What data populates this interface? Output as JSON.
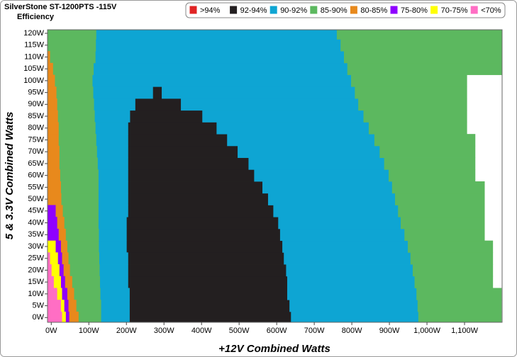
{
  "chart_data": {
    "type": "band-map",
    "title": "SilverStone ST-1200PTS -115V",
    "subtitle": "Efficiency",
    "x_label": "+12V Combined Watts",
    "y_label": "5 & 3.3V Combined Watts",
    "xlim": [
      -10,
      1200
    ],
    "ylim": [
      -2,
      121.5
    ],
    "xticks": [
      {
        "value": 0,
        "label": "0W"
      },
      {
        "value": 100,
        "label": "100W"
      },
      {
        "value": 200,
        "label": "200W"
      },
      {
        "value": 300,
        "label": "300W"
      },
      {
        "value": 400,
        "label": "400W"
      },
      {
        "value": 500,
        "label": "500W"
      },
      {
        "value": 600,
        "label": "600W"
      },
      {
        "value": 700,
        "label": "700W"
      },
      {
        "value": 800,
        "label": "800W"
      },
      {
        "value": 900,
        "label": "900W"
      },
      {
        "value": 1000,
        "label": "1,000W"
      },
      {
        "value": 1100,
        "label": "1,100W"
      }
    ],
    "yticks": [
      {
        "value": 0,
        "label": "0W"
      },
      {
        "value": 5,
        "label": "5W"
      },
      {
        "value": 10,
        "label": "10W"
      },
      {
        "value": 15,
        "label": "15W"
      },
      {
        "value": 20,
        "label": "20W"
      },
      {
        "value": 25,
        "label": "25W"
      },
      {
        "value": 30,
        "label": "30W"
      },
      {
        "value": 35,
        "label": "35W"
      },
      {
        "value": 40,
        "label": "40W"
      },
      {
        "value": 45,
        "label": "45W"
      },
      {
        "value": 50,
        "label": "50W"
      },
      {
        "value": 55,
        "label": "55W"
      },
      {
        "value": 60,
        "label": "60W"
      },
      {
        "value": 65,
        "label": "65W"
      },
      {
        "value": 70,
        "label": "70W"
      },
      {
        "value": 75,
        "label": "75W"
      },
      {
        "value": 80,
        "label": "80W"
      },
      {
        "value": 85,
        "label": "85W"
      },
      {
        "value": 90,
        "label": "90W"
      },
      {
        "value": 95,
        "label": "95W"
      },
      {
        "value": 100,
        "label": "100W"
      },
      {
        "value": 105,
        "label": "105W"
      },
      {
        "value": 110,
        "label": "110W"
      },
      {
        "value": 115,
        "label": "115W"
      },
      {
        "value": 120,
        "label": "120W"
      }
    ],
    "y": [
      0,
      5,
      10,
      15,
      20,
      25,
      30,
      35,
      40,
      45,
      50,
      55,
      60,
      65,
      70,
      75,
      80,
      85,
      90,
      95,
      100,
      105,
      110,
      115,
      120
    ],
    "series": [
      {
        "name": ">94%",
        "color": "#e02424"
      },
      {
        "name": "92-94%",
        "color": "#231f20",
        "x_ranges": [
          [
            [
              208,
              638
            ]
          ],
          [
            [
              208,
              634
            ]
          ],
          [
            [
              208,
              628
            ]
          ],
          [
            [
              204,
              628
            ]
          ],
          [
            [
              204,
              625
            ]
          ],
          [
            [
              204,
              619
            ]
          ],
          [
            [
              200,
              615
            ]
          ],
          [
            [
              200,
              609
            ]
          ],
          [
            [
              200,
              604
            ]
          ],
          [
            [
              204,
              591
            ]
          ],
          [
            [
              204,
              577
            ]
          ],
          [
            [
              204,
              562
            ]
          ],
          [
            [
              204,
              540
            ]
          ],
          [
            [
              204,
              525
            ]
          ],
          [
            [
              204,
              496
            ]
          ],
          [
            [
              204,
              468
            ]
          ],
          [
            [
              204,
              440
            ]
          ],
          [
            [
              209,
              402
            ]
          ],
          [
            [
              223,
              345
            ]
          ],
          [
            [
              270,
              294
            ]
          ],
          [],
          [],
          [],
          [],
          []
        ]
      },
      {
        "name": "90-92%",
        "color": "#0ea5d3",
        "x_ranges": [
          [
            [
              132,
              208
            ],
            [
              638,
              977
            ]
          ],
          [
            [
              132,
              208
            ],
            [
              634,
              975
            ]
          ],
          [
            [
              130,
              208
            ],
            [
              628,
              972
            ]
          ],
          [
            [
              129,
              204
            ],
            [
              628,
              967
            ]
          ],
          [
            [
              128,
              204
            ],
            [
              625,
              962
            ]
          ],
          [
            [
              127,
              204
            ],
            [
              619,
              956
            ]
          ],
          [
            [
              126,
              200
            ],
            [
              615,
              949
            ]
          ],
          [
            [
              126,
              200
            ],
            [
              609,
              940
            ]
          ],
          [
            [
              125,
              200
            ],
            [
              604,
              930
            ]
          ],
          [
            [
              125,
              204
            ],
            [
              591,
              923
            ]
          ],
          [
            [
              125,
              204
            ],
            [
              577,
              915
            ]
          ],
          [
            [
              125,
              204
            ],
            [
              562,
              907
            ]
          ],
          [
            [
              125,
              204
            ],
            [
              540,
              898
            ]
          ],
          [
            [
              123,
              204
            ],
            [
              525,
              886
            ]
          ],
          [
            [
              121,
              204
            ],
            [
              496,
              874
            ]
          ],
          [
            [
              119,
              204
            ],
            [
              468,
              860
            ]
          ],
          [
            [
              117,
              204
            ],
            [
              440,
              845
            ]
          ],
          [
            [
              115,
              209
            ],
            [
              402,
              831
            ]
          ],
          [
            [
              113,
              223
            ],
            [
              345,
              817
            ]
          ],
          [
            [
              111,
              270
            ],
            [
              294,
              808
            ]
          ],
          [
            [
              109,
              798
            ]
          ],
          [
            [
              112,
              788
            ]
          ],
          [
            [
              117,
              779
            ]
          ],
          [
            [
              118,
              770
            ]
          ],
          [
            [
              119,
              760
            ]
          ]
        ]
      },
      {
        "name": "85-90%",
        "color": "#5cb85f",
        "x_ranges": [
          [
            [
              72,
              132
            ],
            [
              977,
              1198
            ]
          ],
          [
            [
              66,
              132
            ],
            [
              975,
              1198
            ]
          ],
          [
            [
              60,
              130
            ],
            [
              972,
              1198
            ]
          ],
          [
            [
              55,
              129
            ],
            [
              967,
              1175
            ]
          ],
          [
            [
              49,
              128
            ],
            [
              962,
              1175
            ]
          ],
          [
            [
              45,
              127
            ],
            [
              956,
              1175
            ]
          ],
          [
            [
              42,
              126
            ],
            [
              949,
              1175
            ]
          ],
          [
            [
              38,
              126
            ],
            [
              940,
              1153
            ]
          ],
          [
            [
              34,
              125
            ],
            [
              930,
              1153
            ]
          ],
          [
            [
              30,
              125
            ],
            [
              923,
              1153
            ]
          ],
          [
            [
              26,
              125
            ],
            [
              915,
              1153
            ]
          ],
          [
            [
              25,
              125
            ],
            [
              907,
              1153
            ]
          ],
          [
            [
              23,
              125
            ],
            [
              898,
              1128
            ]
          ],
          [
            [
              21,
              123
            ],
            [
              886,
              1128
            ]
          ],
          [
            [
              21,
              121
            ],
            [
              874,
              1128
            ]
          ],
          [
            [
              19,
              119
            ],
            [
              860,
              1128
            ]
          ],
          [
            [
              19,
              117
            ],
            [
              845,
              1106
            ]
          ],
          [
            [
              17,
              115
            ],
            [
              831,
              1106
            ]
          ],
          [
            [
              15,
              113
            ],
            [
              817,
              1106
            ]
          ],
          [
            [
              13,
              111
            ],
            [
              808,
              1106
            ]
          ],
          [
            [
              9,
              109
            ],
            [
              798,
              1106
            ]
          ],
          [
            [
              4,
              112
            ],
            [
              788,
              1200
            ]
          ],
          [
            [
              -4,
              117
            ],
            [
              779,
              1200
            ]
          ],
          [
            [
              -10,
              118
            ],
            [
              770,
              1200
            ]
          ],
          [
            [
              -10,
              119
            ],
            [
              760,
              1200
            ]
          ]
        ]
      },
      {
        "name": "80-85%",
        "color": "#e8891c",
        "x_ranges": [
          [
            [
              47,
              72
            ]
          ],
          [
            [
              45,
              66
            ]
          ],
          [
            [
              42,
              60
            ]
          ],
          [
            [
              36,
              55
            ]
          ],
          [
            [
              32,
              49
            ]
          ],
          [
            [
              28,
              45
            ]
          ],
          [
            [
              25,
              42
            ]
          ],
          [
            [
              19,
              38
            ]
          ],
          [
            [
              15,
              34
            ]
          ],
          [
            [
              11,
              30
            ]
          ],
          [
            [
              -10,
              26
            ]
          ],
          [
            [
              -10,
              25
            ]
          ],
          [
            [
              -10,
              23
            ]
          ],
          [
            [
              -10,
              21
            ]
          ],
          [
            [
              -10,
              21
            ]
          ],
          [
            [
              -10,
              19
            ]
          ],
          [
            [
              -10,
              19
            ]
          ],
          [
            [
              -10,
              17
            ]
          ],
          [
            [
              -10,
              15
            ]
          ],
          [
            [
              -10,
              13
            ]
          ],
          [
            [
              -10,
              9
            ]
          ],
          [
            [
              -10,
              4
            ]
          ],
          [
            [
              -10,
              -4
            ]
          ],
          [],
          []
        ]
      },
      {
        "name": "75-80%",
        "color": "#8f00ff",
        "x_ranges": [
          [
            [
              38,
              47
            ]
          ],
          [
            [
              34,
              45
            ]
          ],
          [
            [
              28,
              42
            ]
          ],
          [
            [
              25,
              36
            ]
          ],
          [
            [
              21,
              32
            ]
          ],
          [
            [
              17,
              28
            ]
          ],
          [
            [
              11,
              25
            ]
          ],
          [
            [
              -10,
              19
            ]
          ],
          [
            [
              -10,
              15
            ]
          ],
          [
            [
              -10,
              11
            ]
          ],
          [],
          [],
          [],
          [],
          [],
          [],
          [],
          [],
          [],
          [],
          [],
          [],
          [],
          [],
          []
        ]
      },
      {
        "name": "70-75%",
        "color": "#ffff00",
        "x_ranges": [
          [
            [
              28,
              38
            ]
          ],
          [
            [
              25,
              34
            ]
          ],
          [
            [
              15,
              28
            ]
          ],
          [
            [
              6,
              25
            ]
          ],
          [
            [
              0,
              21
            ]
          ],
          [
            [
              -4,
              17
            ]
          ],
          [
            [
              -10,
              11
            ]
          ],
          [],
          [],
          [],
          [],
          [],
          [],
          [],
          [],
          [],
          [],
          [],
          [],
          [],
          [],
          [],
          [],
          [],
          []
        ]
      },
      {
        "name": "<70%",
        "color": "#ff6ec4",
        "x_ranges": [
          [
            [
              -10,
              28
            ]
          ],
          [
            [
              -10,
              25
            ]
          ],
          [
            [
              -10,
              15
            ]
          ],
          [
            [
              -10,
              6
            ]
          ],
          [
            [
              -10,
              0
            ]
          ],
          [
            [
              -10,
              -4
            ]
          ],
          [],
          [],
          [],
          [],
          [],
          [],
          [],
          [],
          [],
          [],
          [],
          [],
          [],
          [],
          [],
          [],
          [],
          [],
          []
        ]
      }
    ]
  }
}
